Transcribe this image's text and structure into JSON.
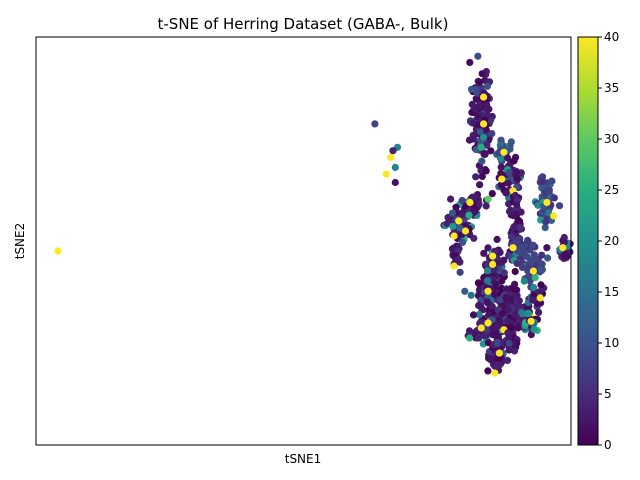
{
  "chart_data": {
    "type": "scatter",
    "title": "t-SNE of Herring Dataset (GABA-, Bulk)",
    "xlabel": "tSNE1",
    "ylabel": "tSNE2",
    "x_ticks_shown": false,
    "y_ticks_shown": false,
    "xlim": [
      -10,
      100
    ],
    "ylim": [
      -10,
      100
    ],
    "grid": false,
    "legend": "none",
    "colorbar": {
      "position": "right",
      "colormap": "viridis",
      "range": [
        0,
        40
      ],
      "ticks": [
        0,
        5,
        10,
        15,
        20,
        25,
        30,
        35,
        40
      ]
    },
    "clusters": [
      {
        "center": [
          83.5,
          81.5
        ],
        "spread": [
          1.2,
          7.5
        ],
        "n": 140,
        "value_range": [
          0,
          12
        ],
        "highlights": [
          [
            84.0,
            88.0,
            40
          ],
          [
            84.0,
            80.0,
            40
          ],
          [
            83.5,
            73.0,
            25
          ],
          [
            84.0,
            76.0,
            20
          ]
        ]
      },
      {
        "center": [
          88.5,
          72.0
        ],
        "spread": [
          0.8,
          1.5
        ],
        "n": 30,
        "value_range": [
          8,
          25
        ],
        "highlights": [
          [
            88.5,
            71.5,
            40
          ]
        ]
      },
      {
        "center": [
          90.0,
          63.5
        ],
        "spread": [
          1.2,
          2.8
        ],
        "n": 60,
        "value_range": [
          0,
          26
        ],
        "highlights": [
          [
            88.0,
            63.5,
            40
          ],
          [
            90.5,
            60.0,
            40
          ]
        ]
      },
      {
        "center": [
          97.5,
          57.0
        ],
        "spread": [
          1.0,
          3.8
        ],
        "n": 60,
        "value_range": [
          5,
          25
        ],
        "highlights": [
          [
            98.0,
            56.5,
            40
          ],
          [
            99.5,
            52.5,
            40
          ]
        ]
      },
      {
        "center": [
          81.0,
          56.0
        ],
        "spread": [
          1.5,
          1.5
        ],
        "n": 50,
        "value_range": [
          0,
          28
        ],
        "highlights": [
          [
            81.0,
            56.5,
            40
          ],
          [
            85.0,
            57.5,
            30
          ]
        ]
      },
      {
        "center": [
          78.5,
          49.5
        ],
        "spread": [
          1.4,
          2.2
        ],
        "n": 70,
        "value_range": [
          0,
          25
        ],
        "highlights": [
          [
            78.5,
            51.0,
            40
          ],
          [
            80.0,
            48.0,
            40
          ],
          [
            77.5,
            46.5,
            40
          ]
        ]
      },
      {
        "center": [
          91.0,
          49.0
        ],
        "spread": [
          0.8,
          4.5
        ],
        "n": 60,
        "value_range": [
          0,
          6
        ],
        "highlights": []
      },
      {
        "center": [
          92.5,
          43.0
        ],
        "spread": [
          1.2,
          2.0
        ],
        "n": 40,
        "value_range": [
          5,
          26
        ],
        "highlights": [
          [
            90.5,
            43.0,
            40
          ]
        ]
      },
      {
        "center": [
          102.0,
          42.5
        ],
        "spread": [
          0.6,
          1.5
        ],
        "n": 30,
        "value_range": [
          0,
          20
        ],
        "highlights": [
          [
            101.5,
            43.0,
            40
          ]
        ]
      },
      {
        "center": [
          78.0,
          40.0
        ],
        "spread": [
          0.4,
          2.0
        ],
        "n": 20,
        "value_range": [
          0,
          8
        ],
        "highlights": [
          [
            77.5,
            37.5,
            40
          ]
        ]
      },
      {
        "center": [
          86.0,
          37.5
        ],
        "spread": [
          1.2,
          3.5
        ],
        "n": 60,
        "value_range": [
          0,
          26
        ],
        "highlights": [
          [
            86.0,
            40.5,
            40
          ],
          [
            86.0,
            38.0,
            40
          ],
          [
            96.0,
            39.5,
            40
          ]
        ]
      },
      {
        "center": [
          95.0,
          37.5
        ],
        "spread": [
          1.2,
          2.0
        ],
        "n": 50,
        "value_range": [
          5,
          28
        ],
        "highlights": [
          [
            95.0,
            36.0,
            40
          ]
        ]
      },
      {
        "center": [
          85.5,
          29.5
        ],
        "spread": [
          1.5,
          3.0
        ],
        "n": 70,
        "value_range": [
          0,
          26
        ],
        "highlights": [
          [
            85.0,
            30.0,
            40
          ]
        ]
      },
      {
        "center": [
          89.5,
          24.5
        ],
        "spread": [
          1.6,
          4.0
        ],
        "n": 90,
        "value_range": [
          0,
          10
        ],
        "highlights": []
      },
      {
        "center": [
          96.0,
          27.5
        ],
        "spread": [
          0.8,
          1.5
        ],
        "n": 35,
        "value_range": [
          0,
          26
        ],
        "highlights": [
          [
            96.5,
            28.0,
            40
          ],
          [
            94.5,
            22.5,
            40
          ]
        ]
      },
      {
        "center": [
          84.5,
          18.5
        ],
        "spread": [
          1.6,
          2.0
        ],
        "n": 70,
        "value_range": [
          0,
          26
        ],
        "highlights": [
          [
            83.5,
            19.0,
            40
          ],
          [
            85.0,
            20.5,
            40
          ],
          [
            88.5,
            18.5,
            40
          ]
        ]
      },
      {
        "center": [
          94.0,
          21.0
        ],
        "spread": [
          1.0,
          1.5
        ],
        "n": 40,
        "value_range": [
          0,
          26
        ],
        "highlights": [
          [
            94.5,
            21.0,
            40
          ]
        ]
      },
      {
        "center": [
          87.0,
          10.0
        ],
        "spread": [
          0.8,
          2.5
        ],
        "n": 50,
        "value_range": [
          0,
          12
        ],
        "highlights": [
          [
            87.5,
            11.5,
            40
          ],
          [
            86.5,
            5.5,
            40
          ]
        ]
      },
      {
        "center": [
          90.0,
          16.0
        ],
        "spread": [
          0.8,
          1.5
        ],
        "n": 30,
        "value_range": [
          0,
          8
        ],
        "highlights": []
      }
    ],
    "outliers": [
      {
        "x": -10,
        "y": 42,
        "value": 40
      },
      {
        "x": 60,
        "y": 80,
        "value": 8
      },
      {
        "x": 62.5,
        "y": 65,
        "value": 40
      },
      {
        "x": 63.5,
        "y": 70,
        "value": 40
      },
      {
        "x": 64.5,
        "y": 67,
        "value": 18
      },
      {
        "x": 64.5,
        "y": 62.5,
        "value": 2
      },
      {
        "x": 65,
        "y": 73,
        "value": 18
      },
      {
        "x": 64,
        "y": 72,
        "value": 4
      },
      {
        "x": 93,
        "y": 33,
        "value": 18
      },
      {
        "x": 98,
        "y": 43,
        "value": 2
      }
    ]
  }
}
